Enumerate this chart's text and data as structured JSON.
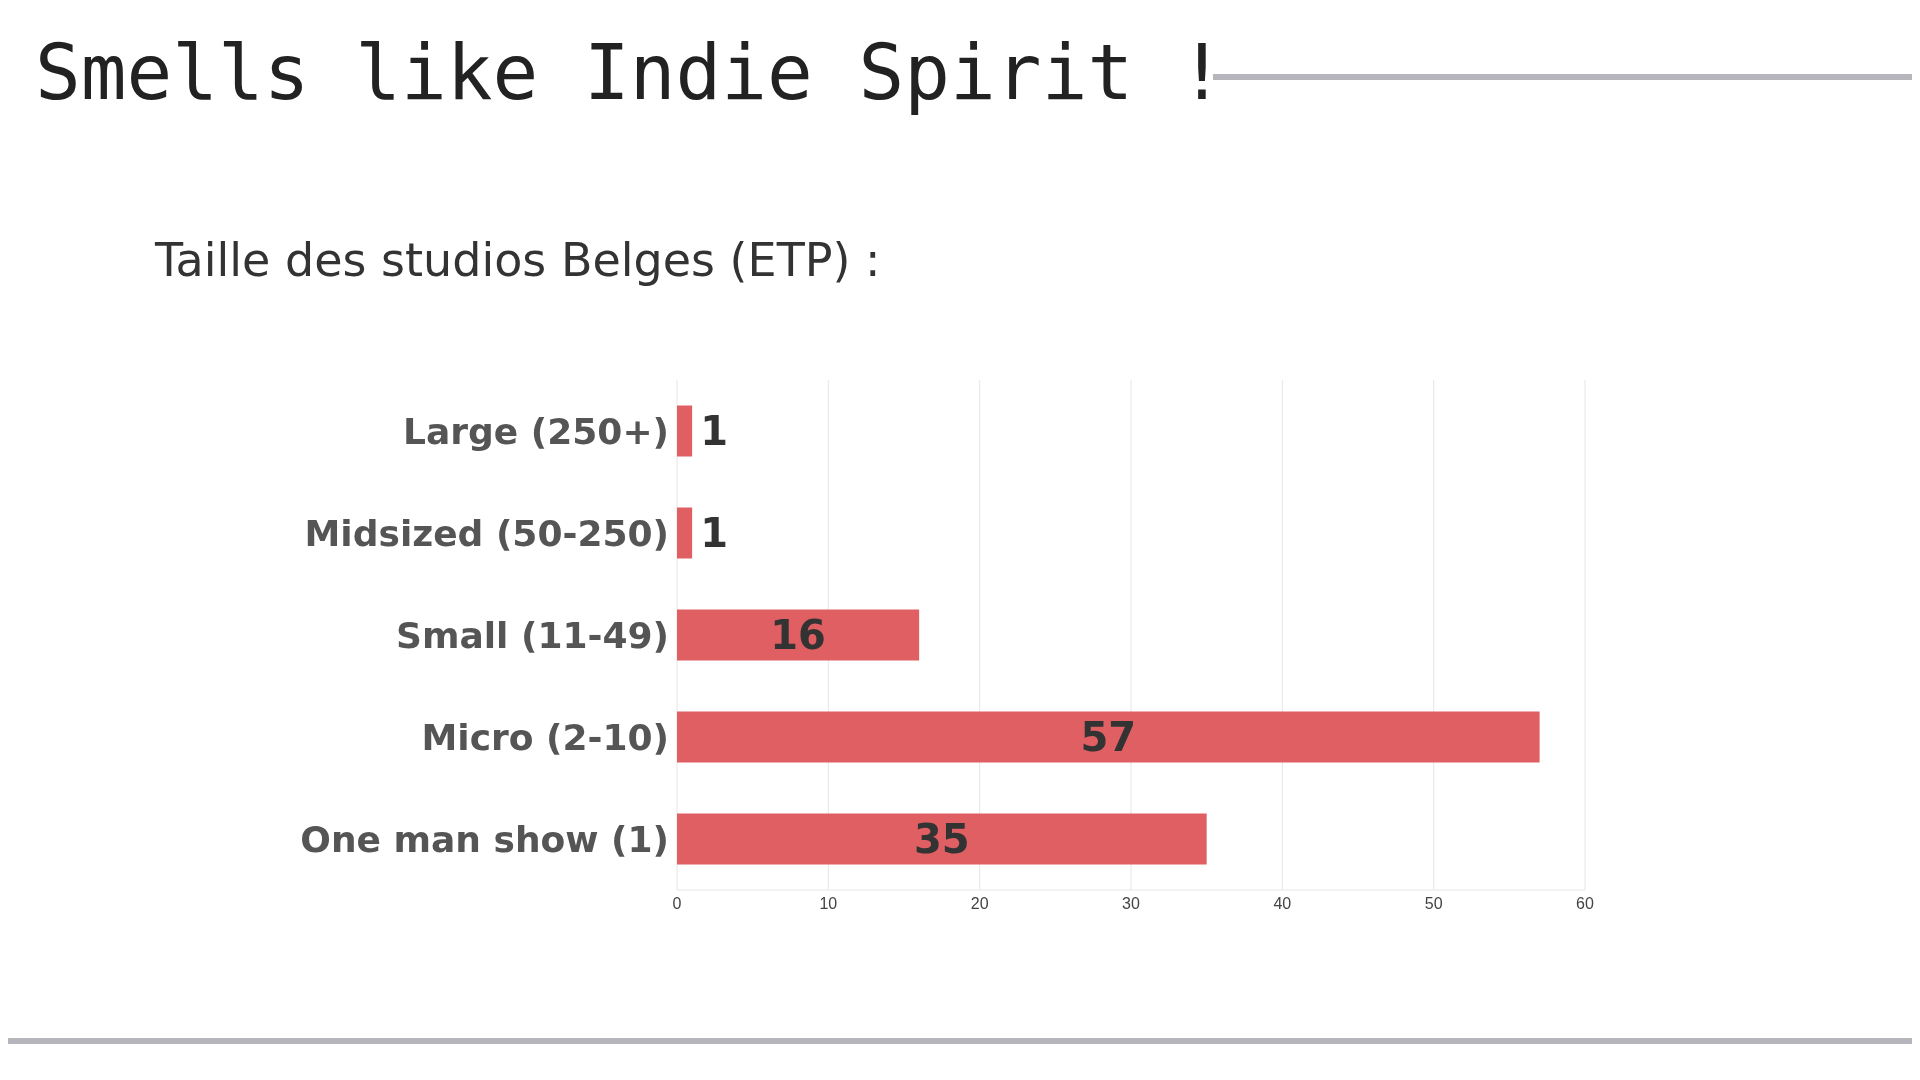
{
  "chart_data": {
    "type": "bar",
    "orientation": "horizontal",
    "title": "Smells like Indie Spirit !",
    "subtitle": "Taille des studios Belges (ETP) :",
    "categories": [
      "Large (250+)",
      "Midsized (50-250)",
      "Small (11-49)",
      "Micro (2-10)",
      "One man show (1)"
    ],
    "values": [
      1,
      1,
      16,
      57,
      35
    ],
    "color": "#e05f63",
    "data_labels": true,
    "xlim": [
      0,
      60
    ],
    "xticks": [
      0,
      10,
      20,
      30,
      40,
      50,
      60
    ],
    "grid": "x"
  }
}
